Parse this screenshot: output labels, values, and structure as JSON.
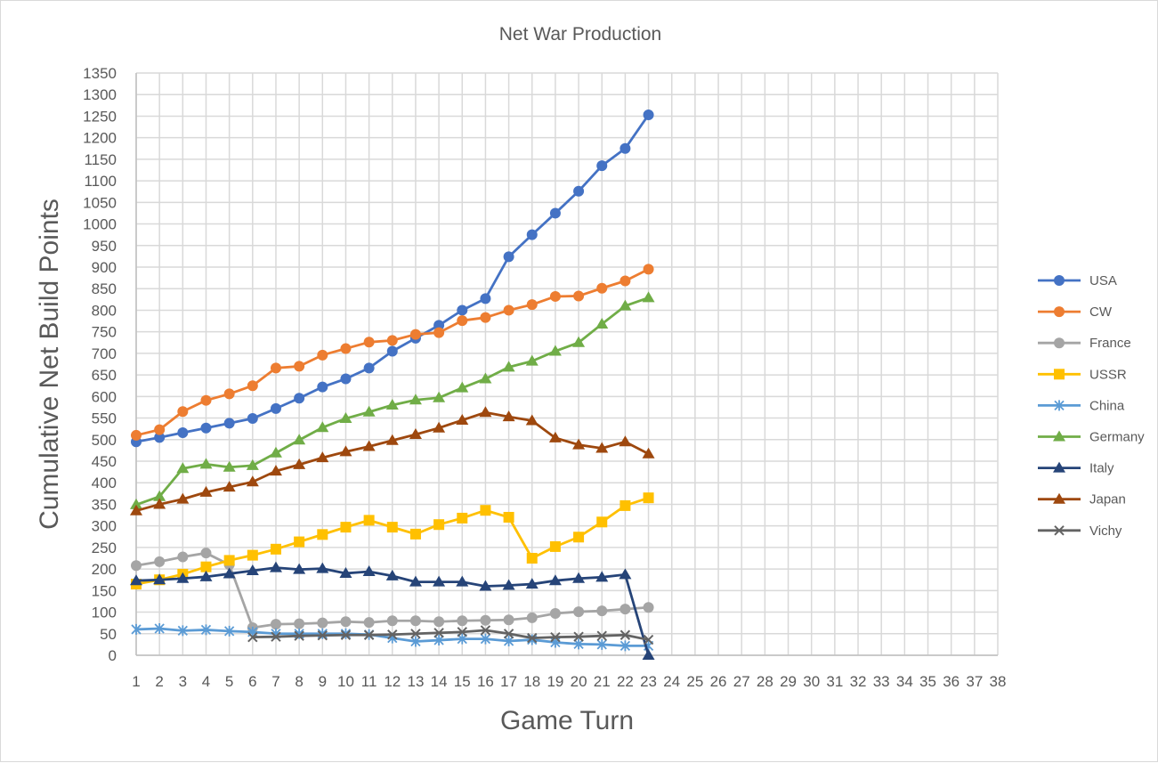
{
  "chart_data": {
    "type": "line",
    "title": "Net War Production",
    "xlabel": "Game Turn",
    "ylabel": "Cumulative Net Build Points",
    "xlim": [
      1,
      38
    ],
    "ylim": [
      0,
      1350
    ],
    "ytick_step": 50,
    "grid": true,
    "legend_position": "right",
    "x": [
      1,
      2,
      3,
      4,
      5,
      6,
      7,
      8,
      9,
      10,
      11,
      12,
      13,
      14,
      15,
      16,
      17,
      18,
      19,
      20,
      21,
      22,
      23
    ],
    "series": [
      {
        "name": "USA",
        "color": "#4472C4",
        "marker": "circle",
        "values": [
          495,
          505,
          516,
          527,
          538,
          549,
          572,
          596,
          622,
          641,
          666,
          705,
          735,
          765,
          800,
          827,
          924,
          975,
          1025,
          1076,
          1135,
          1175,
          1253
        ]
      },
      {
        "name": "CW",
        "color": "#ED7D31",
        "marker": "circle",
        "values": [
          510,
          523,
          565,
          591,
          606,
          625,
          666,
          670,
          696,
          711,
          726,
          730,
          744,
          748,
          776,
          783,
          800,
          813,
          832,
          833,
          851,
          868,
          895
        ]
      },
      {
        "name": "France",
        "color": "#A5A5A5",
        "marker": "circle",
        "values": [
          208,
          217,
          228,
          237,
          210,
          64,
          72,
          73,
          75,
          78,
          76,
          80,
          80,
          78,
          80,
          81,
          82,
          87,
          97,
          101,
          103,
          107,
          111
        ]
      },
      {
        "name": "USSR",
        "color": "#FFC000",
        "marker": "square",
        "values": [
          165,
          175,
          188,
          205,
          220,
          232,
          246,
          263,
          280,
          297,
          313,
          297,
          281,
          303,
          318,
          336,
          320,
          225,
          252,
          274,
          309,
          347,
          365
        ]
      },
      {
        "name": "China",
        "color": "#5B9BD5",
        "marker": "asterisk",
        "values": [
          60,
          62,
          57,
          59,
          56,
          54,
          50,
          50,
          50,
          50,
          48,
          40,
          32,
          35,
          38,
          38,
          33,
          36,
          30,
          26,
          25,
          22,
          22
        ]
      },
      {
        "name": "Germany",
        "color": "#70AD47",
        "marker": "triangle",
        "values": [
          349,
          368,
          433,
          443,
          436,
          440,
          469,
          499,
          528,
          549,
          564,
          580,
          592,
          597,
          620,
          641,
          668,
          682,
          705,
          725,
          768,
          810,
          829
        ]
      },
      {
        "name": "Italy",
        "color": "#264478",
        "marker": "triangle",
        "values": [
          173,
          175,
          178,
          182,
          189,
          196,
          203,
          199,
          201,
          190,
          194,
          184,
          170,
          170,
          170,
          160,
          162,
          165,
          173,
          178,
          181,
          187,
          0
        ]
      },
      {
        "name": "Japan",
        "color": "#9E480E",
        "marker": "triangle",
        "values": [
          335,
          350,
          362,
          378,
          390,
          402,
          427,
          442,
          458,
          472,
          484,
          498,
          512,
          527,
          545,
          563,
          553,
          544,
          504,
          488,
          480,
          495,
          467
        ]
      },
      {
        "name": "Vichy",
        "color": "#636363",
        "marker": "x",
        "values": [
          null,
          null,
          null,
          null,
          null,
          42,
          43,
          45,
          46,
          47,
          47,
          48,
          50,
          52,
          54,
          58,
          50,
          40,
          42,
          43,
          45,
          47,
          36
        ]
      }
    ]
  }
}
